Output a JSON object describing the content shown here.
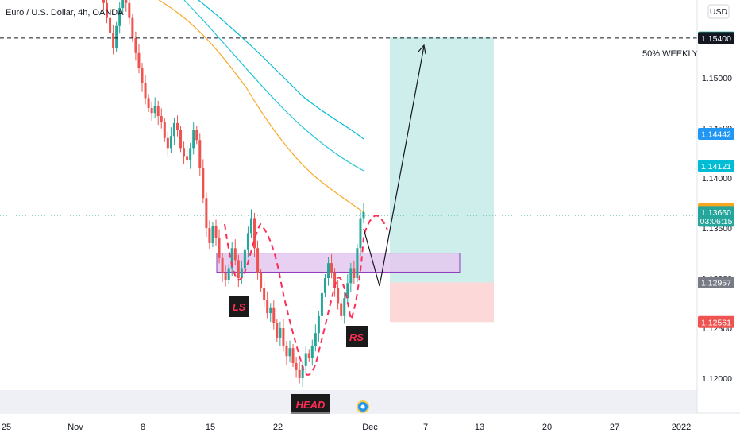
{
  "header": {
    "title": "Euro / U.S. Dollar, 4h, OANDA",
    "currency": "USD"
  },
  "colors": {
    "bull": "#26a69a",
    "bear": "#ef5350",
    "ma_orange": "#f7a823",
    "ma_cyan": "#26c6da",
    "ma_teal": "#00bcd4",
    "target_zone": "#cdeeea",
    "stop_zone": "#fdd8d8",
    "support_zone": "#e4c8f0",
    "pattern": "#ff2d55"
  },
  "chart_data": {
    "type": "candlestick",
    "symbol": "EURUSD",
    "timeframe": "4h",
    "ylim": [
      1.1165,
      1.1578
    ],
    "y_ticks": [
      "1.12000",
      "1.12500",
      "1.13000",
      "1.13500",
      "1.14000",
      "1.14500",
      "1.15000"
    ],
    "x_ticks": [
      "25",
      "Nov",
      "8",
      "15",
      "22",
      "Dec",
      "7",
      "13",
      "20",
      "27",
      "2022"
    ],
    "price_tags": [
      {
        "value": "1.15406",
        "color": "#26a69a"
      },
      {
        "value": "1.15400",
        "color": "#131722"
      },
      {
        "value": "1.14442",
        "color": "#2196f3"
      },
      {
        "value": "1.14121",
        "color": "#00bcd4"
      },
      {
        "value": "1.13688",
        "color": "#f7a823"
      },
      {
        "value": "1.13660",
        "color": "#26a69a",
        "countdown": "03:06:15"
      },
      {
        "value": "1.12957",
        "color": "#787b86"
      },
      {
        "value": "1.12561",
        "color": "#ef5350"
      }
    ],
    "horizontal_line": {
      "price": 1.154,
      "label": "50% WEEKLY"
    },
    "current_price": 1.1366,
    "annotations": {
      "left_shoulder": "LS",
      "head": "HEAD",
      "right_shoulder": "RS"
    },
    "trade": {
      "entry": 1.12957,
      "target": 1.15406,
      "stop": 1.12561
    },
    "support_zone": {
      "top": 1.1325,
      "bottom": 1.1306
    },
    "close_series": [
      1.1645,
      1.1638,
      1.1652,
      1.166,
      1.1648,
      1.1635,
      1.162,
      1.16,
      1.1592,
      1.1585,
      1.159,
      1.1575,
      1.156,
      1.1545,
      1.153,
      1.1552,
      1.157,
      1.1585,
      1.1575,
      1.156,
      1.154,
      1.1525,
      1.151,
      1.1495,
      1.148,
      1.147,
      1.1465,
      1.1472,
      1.1462,
      1.1456,
      1.144,
      1.143,
      1.1442,
      1.1455,
      1.1448,
      1.143,
      1.1422,
      1.1418,
      1.143,
      1.1448,
      1.1438,
      1.141,
      1.138,
      1.135,
      1.1335,
      1.1352,
      1.134,
      1.132,
      1.1305,
      1.1298,
      1.131,
      1.133,
      1.1318,
      1.13,
      1.131,
      1.1328,
      1.1345,
      1.136,
      1.133,
      1.1305,
      1.129,
      1.1278,
      1.1265,
      1.127,
      1.1255,
      1.124,
      1.125,
      1.1232,
      1.1222,
      1.123,
      1.1215,
      1.1208,
      1.12,
      1.1212,
      1.1225,
      1.122,
      1.1232,
      1.1245,
      1.1262,
      1.1285,
      1.13,
      1.1315,
      1.1305,
      1.129,
      1.1275,
      1.1262,
      1.128,
      1.1295,
      1.131,
      1.13,
      1.133,
      1.136,
      1.1366
    ]
  }
}
